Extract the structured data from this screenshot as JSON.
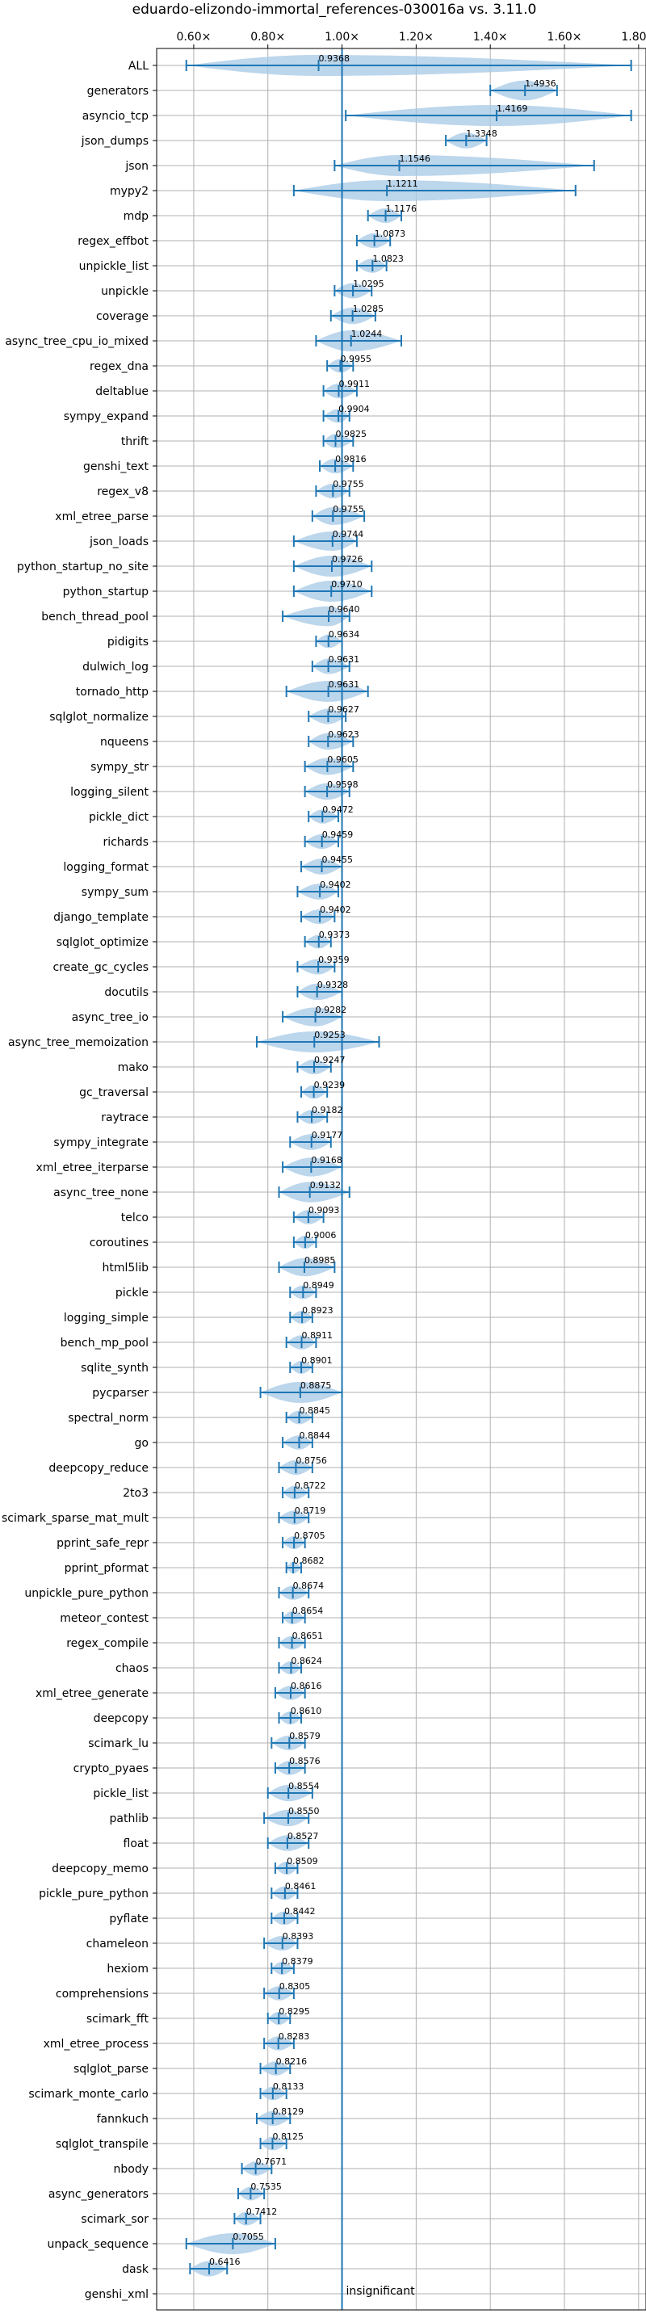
{
  "chart_data": {
    "type": "violin",
    "title": "eduardo-elizondo-immortal_references-030016a vs. 3.11.0",
    "orientation": "horizontal",
    "xlim": [
      0.5,
      1.82
    ],
    "xticks": [
      0.6,
      0.8,
      1.0,
      1.2,
      1.4,
      1.6,
      1.8
    ],
    "xtick_labels": [
      "0.60×",
      "0.80×",
      "1.00×",
      "1.20×",
      "1.40×",
      "1.60×",
      "1.80×"
    ],
    "reference_line": 1.0,
    "grid": true,
    "colors": {
      "violin": "#a6c8e6",
      "stat": "#1f77b4",
      "grid": "#b0b0b0"
    },
    "benchmarks": [
      {
        "name": "ALL",
        "median": 0.9368,
        "min": 0.58,
        "max": 1.78,
        "label": "0.9368"
      },
      {
        "name": "generators",
        "median": 1.4936,
        "min": 1.4,
        "max": 1.58,
        "label": "1.4936"
      },
      {
        "name": "asyncio_tcp",
        "median": 1.4169,
        "min": 1.01,
        "max": 1.78,
        "label": "1.4169"
      },
      {
        "name": "json_dumps",
        "median": 1.3348,
        "min": 1.28,
        "max": 1.39,
        "label": "1.3348"
      },
      {
        "name": "json",
        "median": 1.1546,
        "min": 0.98,
        "max": 1.68,
        "label": "1.1546"
      },
      {
        "name": "mypy2",
        "median": 1.1211,
        "min": 0.87,
        "max": 1.63,
        "label": "1.1211"
      },
      {
        "name": "mdp",
        "median": 1.1176,
        "min": 1.07,
        "max": 1.16,
        "label": "1.1176"
      },
      {
        "name": "regex_effbot",
        "median": 1.0873,
        "min": 1.04,
        "max": 1.13,
        "label": "1.0873"
      },
      {
        "name": "unpickle_list",
        "median": 1.0823,
        "min": 1.04,
        "max": 1.12,
        "label": "1.0823"
      },
      {
        "name": "unpickle",
        "median": 1.0295,
        "min": 0.98,
        "max": 1.08,
        "label": "1.0295"
      },
      {
        "name": "coverage",
        "median": 1.0285,
        "min": 0.97,
        "max": 1.09,
        "label": "1.0285"
      },
      {
        "name": "async_tree_cpu_io_mixed",
        "median": 1.0244,
        "min": 0.93,
        "max": 1.16,
        "label": "1.0244"
      },
      {
        "name": "regex_dna",
        "median": 0.9955,
        "min": 0.96,
        "max": 1.03,
        "label": "0.9955"
      },
      {
        "name": "deltablue",
        "median": 0.9911,
        "min": 0.95,
        "max": 1.04,
        "label": "0.9911"
      },
      {
        "name": "sympy_expand",
        "median": 0.9904,
        "min": 0.95,
        "max": 1.02,
        "label": "0.9904"
      },
      {
        "name": "thrift",
        "median": 0.9825,
        "min": 0.95,
        "max": 1.03,
        "label": "0.9825"
      },
      {
        "name": "genshi_text",
        "median": 0.9816,
        "min": 0.94,
        "max": 1.03,
        "label": "0.9816"
      },
      {
        "name": "regex_v8",
        "median": 0.9755,
        "min": 0.93,
        "max": 1.02,
        "label": "0.9755"
      },
      {
        "name": "xml_etree_parse",
        "median": 0.9755,
        "min": 0.92,
        "max": 1.06,
        "label": "0.9755"
      },
      {
        "name": "json_loads",
        "median": 0.9744,
        "min": 0.87,
        "max": 1.04,
        "label": "0.9744"
      },
      {
        "name": "python_startup_no_site",
        "median": 0.9726,
        "min": 0.87,
        "max": 1.08,
        "label": "0.9726"
      },
      {
        "name": "python_startup",
        "median": 0.971,
        "min": 0.87,
        "max": 1.08,
        "label": "0.9710"
      },
      {
        "name": "bench_thread_pool",
        "median": 0.964,
        "min": 0.84,
        "max": 1.02,
        "label": "0.9640"
      },
      {
        "name": "pidigits",
        "median": 0.9634,
        "min": 0.93,
        "max": 1.0,
        "label": "0.9634"
      },
      {
        "name": "dulwich_log",
        "median": 0.9631,
        "min": 0.92,
        "max": 1.02,
        "label": "0.9631"
      },
      {
        "name": "tornado_http",
        "median": 0.9631,
        "min": 0.85,
        "max": 1.07,
        "label": "0.9631"
      },
      {
        "name": "sqlglot_normalize",
        "median": 0.9627,
        "min": 0.91,
        "max": 1.01,
        "label": "0.9627"
      },
      {
        "name": "nqueens",
        "median": 0.9623,
        "min": 0.91,
        "max": 1.03,
        "label": "0.9623"
      },
      {
        "name": "sympy_str",
        "median": 0.9605,
        "min": 0.9,
        "max": 1.03,
        "label": "0.9605"
      },
      {
        "name": "logging_silent",
        "median": 0.9598,
        "min": 0.9,
        "max": 1.02,
        "label": "0.9598"
      },
      {
        "name": "pickle_dict",
        "median": 0.9472,
        "min": 0.91,
        "max": 0.99,
        "label": "0.9472"
      },
      {
        "name": "richards",
        "median": 0.9459,
        "min": 0.9,
        "max": 0.99,
        "label": "0.9459"
      },
      {
        "name": "logging_format",
        "median": 0.9455,
        "min": 0.89,
        "max": 1.0,
        "label": "0.9455"
      },
      {
        "name": "sympy_sum",
        "median": 0.9402,
        "min": 0.88,
        "max": 0.99,
        "label": "0.9402"
      },
      {
        "name": "django_template",
        "median": 0.9402,
        "min": 0.89,
        "max": 0.98,
        "label": "0.9402"
      },
      {
        "name": "sqlglot_optimize",
        "median": 0.9373,
        "min": 0.9,
        "max": 0.97,
        "label": "0.9373"
      },
      {
        "name": "create_gc_cycles",
        "median": 0.9359,
        "min": 0.88,
        "max": 0.98,
        "label": "0.9359"
      },
      {
        "name": "docutils",
        "median": 0.9328,
        "min": 0.88,
        "max": 1.0,
        "label": "0.9328"
      },
      {
        "name": "async_tree_io",
        "median": 0.9282,
        "min": 0.84,
        "max": 1.0,
        "label": "0.9282"
      },
      {
        "name": "async_tree_memoization",
        "median": 0.9253,
        "min": 0.77,
        "max": 1.1,
        "label": "0.9253"
      },
      {
        "name": "mako",
        "median": 0.9247,
        "min": 0.88,
        "max": 0.97,
        "label": "0.9247"
      },
      {
        "name": "gc_traversal",
        "median": 0.9239,
        "min": 0.89,
        "max": 0.96,
        "label": "0.9239"
      },
      {
        "name": "raytrace",
        "median": 0.9182,
        "min": 0.88,
        "max": 0.96,
        "label": "0.9182"
      },
      {
        "name": "sympy_integrate",
        "median": 0.9177,
        "min": 0.86,
        "max": 0.97,
        "label": "0.9177"
      },
      {
        "name": "xml_etree_iterparse",
        "median": 0.9168,
        "min": 0.84,
        "max": 1.0,
        "label": "0.9168"
      },
      {
        "name": "async_tree_none",
        "median": 0.9132,
        "min": 0.83,
        "max": 1.02,
        "label": "0.9132"
      },
      {
        "name": "telco",
        "median": 0.9093,
        "min": 0.87,
        "max": 0.95,
        "label": "0.9093"
      },
      {
        "name": "coroutines",
        "median": 0.9006,
        "min": 0.87,
        "max": 0.93,
        "label": "0.9006"
      },
      {
        "name": "html5lib",
        "median": 0.8985,
        "min": 0.83,
        "max": 0.98,
        "label": "0.8985"
      },
      {
        "name": "pickle",
        "median": 0.8949,
        "min": 0.86,
        "max": 0.93,
        "label": "0.8949"
      },
      {
        "name": "logging_simple",
        "median": 0.8923,
        "min": 0.86,
        "max": 0.92,
        "label": "0.8923"
      },
      {
        "name": "bench_mp_pool",
        "median": 0.8911,
        "min": 0.85,
        "max": 0.93,
        "label": "0.8911"
      },
      {
        "name": "sqlite_synth",
        "median": 0.8901,
        "min": 0.86,
        "max": 0.92,
        "label": "0.8901"
      },
      {
        "name": "pycparser",
        "median": 0.8875,
        "min": 0.78,
        "max": 1.0,
        "label": "0.8875"
      },
      {
        "name": "spectral_norm",
        "median": 0.8845,
        "min": 0.85,
        "max": 0.92,
        "label": "0.8845"
      },
      {
        "name": "go",
        "median": 0.8844,
        "min": 0.84,
        "max": 0.92,
        "label": "0.8844"
      },
      {
        "name": "deepcopy_reduce",
        "median": 0.8756,
        "min": 0.83,
        "max": 0.92,
        "label": "0.8756"
      },
      {
        "name": "2to3",
        "median": 0.8722,
        "min": 0.84,
        "max": 0.91,
        "label": "0.8722"
      },
      {
        "name": "scimark_sparse_mat_mult",
        "median": 0.8719,
        "min": 0.83,
        "max": 0.91,
        "label": "0.8719"
      },
      {
        "name": "pprint_safe_repr",
        "median": 0.8705,
        "min": 0.84,
        "max": 0.9,
        "label": "0.8705"
      },
      {
        "name": "pprint_pformat",
        "median": 0.8682,
        "min": 0.85,
        "max": 0.89,
        "label": "0.8682"
      },
      {
        "name": "unpickle_pure_python",
        "median": 0.8674,
        "min": 0.83,
        "max": 0.91,
        "label": "0.8674"
      },
      {
        "name": "meteor_contest",
        "median": 0.8654,
        "min": 0.84,
        "max": 0.9,
        "label": "0.8654"
      },
      {
        "name": "regex_compile",
        "median": 0.8651,
        "min": 0.83,
        "max": 0.9,
        "label": "0.8651"
      },
      {
        "name": "chaos",
        "median": 0.8624,
        "min": 0.83,
        "max": 0.89,
        "label": "0.8624"
      },
      {
        "name": "xml_etree_generate",
        "median": 0.8616,
        "min": 0.82,
        "max": 0.9,
        "label": "0.8616"
      },
      {
        "name": "deepcopy",
        "median": 0.861,
        "min": 0.83,
        "max": 0.89,
        "label": "0.8610"
      },
      {
        "name": "scimark_lu",
        "median": 0.8579,
        "min": 0.81,
        "max": 0.9,
        "label": "0.8579"
      },
      {
        "name": "crypto_pyaes",
        "median": 0.8576,
        "min": 0.82,
        "max": 0.9,
        "label": "0.8576"
      },
      {
        "name": "pickle_list",
        "median": 0.8554,
        "min": 0.8,
        "max": 0.92,
        "label": "0.8554"
      },
      {
        "name": "pathlib",
        "median": 0.855,
        "min": 0.79,
        "max": 0.91,
        "label": "0.8550"
      },
      {
        "name": "float",
        "median": 0.8527,
        "min": 0.8,
        "max": 0.91,
        "label": "0.8527"
      },
      {
        "name": "deepcopy_memo",
        "median": 0.8509,
        "min": 0.82,
        "max": 0.88,
        "label": "0.8509"
      },
      {
        "name": "pickle_pure_python",
        "median": 0.8461,
        "min": 0.81,
        "max": 0.88,
        "label": "0.8461"
      },
      {
        "name": "pyflate",
        "median": 0.8442,
        "min": 0.81,
        "max": 0.88,
        "label": "0.8442"
      },
      {
        "name": "chameleon",
        "median": 0.8393,
        "min": 0.79,
        "max": 0.88,
        "label": "0.8393"
      },
      {
        "name": "hexiom",
        "median": 0.8379,
        "min": 0.81,
        "max": 0.87,
        "label": "0.8379"
      },
      {
        "name": "comprehensions",
        "median": 0.8305,
        "min": 0.79,
        "max": 0.87,
        "label": "0.8305"
      },
      {
        "name": "scimark_fft",
        "median": 0.8295,
        "min": 0.8,
        "max": 0.86,
        "label": "0.8295"
      },
      {
        "name": "xml_etree_process",
        "median": 0.8283,
        "min": 0.79,
        "max": 0.87,
        "label": "0.8283"
      },
      {
        "name": "sqlglot_parse",
        "median": 0.8216,
        "min": 0.78,
        "max": 0.86,
        "label": "0.8216"
      },
      {
        "name": "scimark_monte_carlo",
        "median": 0.8133,
        "min": 0.78,
        "max": 0.85,
        "label": "0.8133"
      },
      {
        "name": "fannkuch",
        "median": 0.8129,
        "min": 0.77,
        "max": 0.86,
        "label": "0.8129"
      },
      {
        "name": "sqlglot_transpile",
        "median": 0.8125,
        "min": 0.78,
        "max": 0.85,
        "label": "0.8125"
      },
      {
        "name": "nbody",
        "median": 0.7671,
        "min": 0.73,
        "max": 0.81,
        "label": "0.7671"
      },
      {
        "name": "async_generators",
        "median": 0.7535,
        "min": 0.72,
        "max": 0.79,
        "label": "0.7535"
      },
      {
        "name": "scimark_sor",
        "median": 0.7412,
        "min": 0.71,
        "max": 0.78,
        "label": "0.7412"
      },
      {
        "name": "unpack_sequence",
        "median": 0.7055,
        "min": 0.58,
        "max": 0.82,
        "label": "0.7055"
      },
      {
        "name": "dask",
        "median": 0.6416,
        "min": 0.59,
        "max": 0.69,
        "label": "0.6416"
      },
      {
        "name": "genshi_xml",
        "median": null,
        "min": null,
        "max": null,
        "label": "insignificant"
      }
    ]
  }
}
